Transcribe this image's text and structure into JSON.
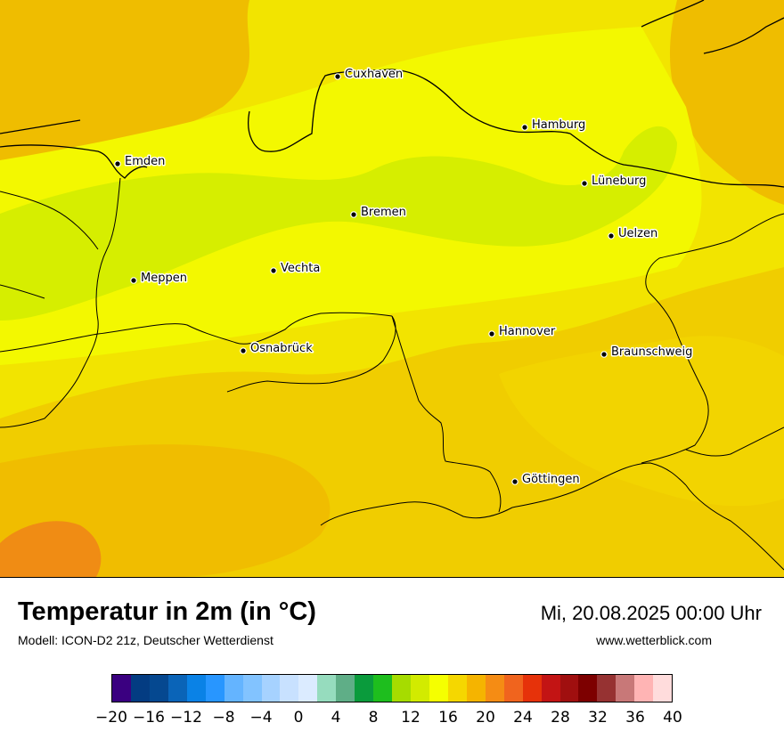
{
  "header": {
    "title": "Temperatur in 2m (in °C)",
    "model": "Modell: ICON-D2 21z, Deutscher Wetterdienst",
    "datetime": "Mi, 20.08.2025 00:00 Uhr",
    "website": "www.wetterblick.com"
  },
  "map": {
    "cities": [
      {
        "name": "Cuxhaven"
      },
      {
        "name": "Hamburg"
      },
      {
        "name": "Emden"
      },
      {
        "name": "Lüneburg"
      },
      {
        "name": "Bremen"
      },
      {
        "name": "Uelzen"
      },
      {
        "name": "Vechta"
      },
      {
        "name": "Meppen"
      },
      {
        "name": "Hannover"
      },
      {
        "name": "Osnabrück"
      },
      {
        "name": "Braunschweig"
      },
      {
        "name": "Göttingen"
      }
    ]
  },
  "colorscale": {
    "colors": [
      "#3a0080",
      "#033c82",
      "#054890",
      "#0a64b8",
      "#0a82e6",
      "#2896ff",
      "#64b4ff",
      "#82c3ff",
      "#a6d2ff",
      "#c8e1ff",
      "#dbebff",
      "#96dcbe",
      "#5fae87",
      "#0a9b3c",
      "#1ebe1e",
      "#a6dc00",
      "#d2eb00",
      "#f5ff00",
      "#f5d700",
      "#f5b400",
      "#f58c14",
      "#f0641e",
      "#e6320a",
      "#c31414",
      "#a00f0f",
      "#7d0000",
      "#963232",
      "#c87878",
      "#ffb4b4",
      "#ffdcdc"
    ],
    "tick_labels": [
      "−20",
      "−16",
      "−12",
      "−8",
      "−4",
      "0",
      "4",
      "8",
      "12",
      "16",
      "20",
      "24",
      "28",
      "32",
      "36",
      "40"
    ]
  }
}
